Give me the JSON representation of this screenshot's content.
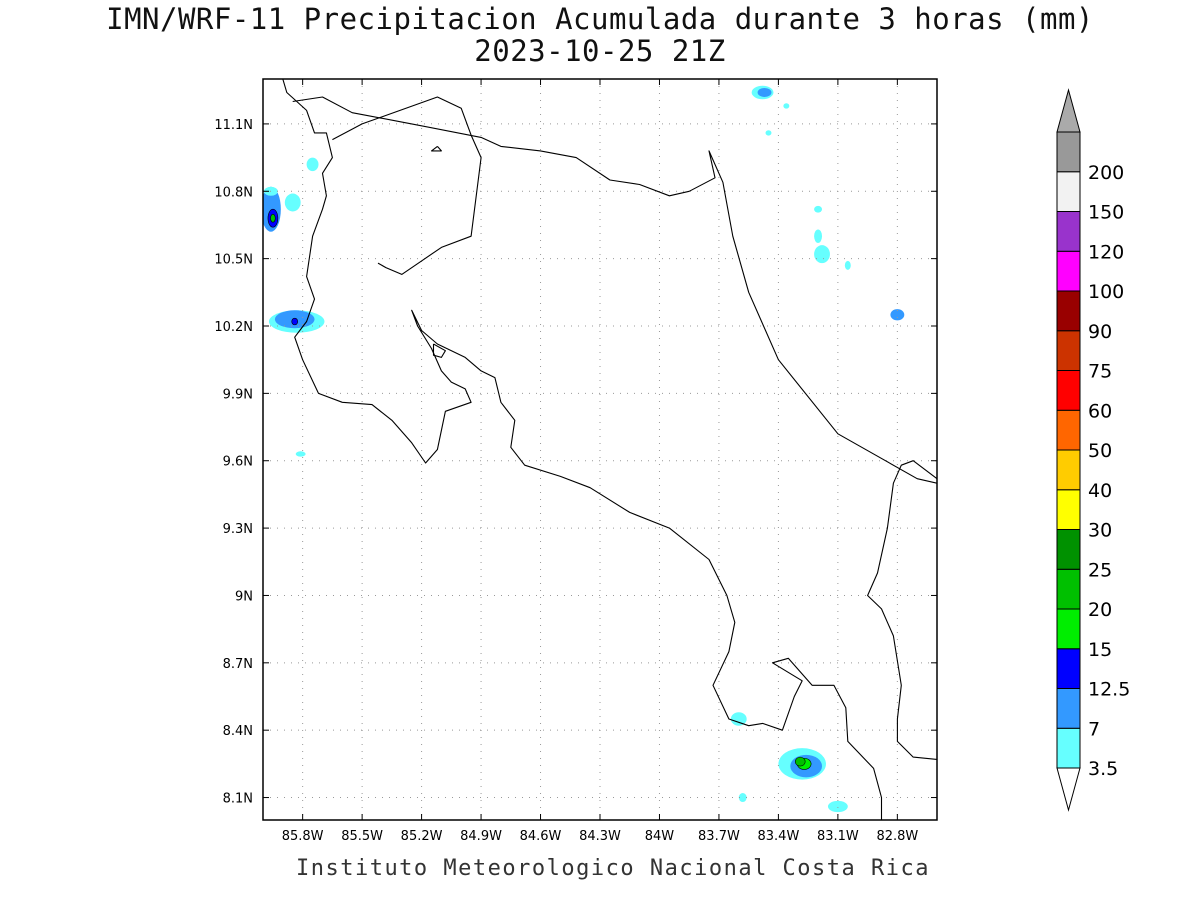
{
  "title": {
    "line1": "IMN/WRF-11 Precipitacion Acumulada durante 3 horas (mm)",
    "line2": "2023-10-25 21Z"
  },
  "footer": "Instituto Meteorologico Nacional Costa Rica",
  "map": {
    "lon_range": [
      -86.0,
      -82.6
    ],
    "lat_range": [
      8.0,
      11.3
    ],
    "grid": true,
    "lon_ticks": [
      {
        "value": -85.8,
        "label": "85.8W"
      },
      {
        "value": -85.5,
        "label": "85.5W"
      },
      {
        "value": -85.2,
        "label": "85.2W"
      },
      {
        "value": -84.9,
        "label": "84.9W"
      },
      {
        "value": -84.6,
        "label": "84.6W"
      },
      {
        "value": -84.3,
        "label": "84.3W"
      },
      {
        "value": -84.0,
        "label": "84W"
      },
      {
        "value": -83.7,
        "label": "83.7W"
      },
      {
        "value": -83.4,
        "label": "83.4W"
      },
      {
        "value": -83.1,
        "label": "83.1W"
      },
      {
        "value": -82.8,
        "label": "82.8W"
      }
    ],
    "lat_ticks": [
      {
        "value": 11.1,
        "label": "11.1N"
      },
      {
        "value": 10.8,
        "label": "10.8N"
      },
      {
        "value": 10.5,
        "label": "10.5N"
      },
      {
        "value": 10.2,
        "label": "10.2N"
      },
      {
        "value": 9.9,
        "label": "9.9N"
      },
      {
        "value": 9.6,
        "label": "9.6N"
      },
      {
        "value": 9.3,
        "label": "9.3N"
      },
      {
        "value": 9.0,
        "label": "9N"
      },
      {
        "value": 8.7,
        "label": "8.7N"
      },
      {
        "value": 8.4,
        "label": "8.4N"
      },
      {
        "value": 8.1,
        "label": "8.1N"
      }
    ],
    "coastlines": [
      [
        [
          -85.9,
          11.3
        ],
        [
          -85.88,
          11.24
        ],
        [
          -85.78,
          11.16
        ],
        [
          -85.74,
          11.06
        ],
        [
          -85.68,
          11.06
        ],
        [
          -85.65,
          10.95
        ],
        [
          -85.7,
          10.88
        ],
        [
          -85.68,
          10.78
        ],
        [
          -85.7,
          10.72
        ],
        [
          -85.75,
          10.6
        ],
        [
          -85.78,
          10.42
        ],
        [
          -85.74,
          10.32
        ],
        [
          -85.78,
          10.22
        ],
        [
          -85.84,
          10.15
        ],
        [
          -85.8,
          10.05
        ],
        [
          -85.72,
          9.9
        ],
        [
          -85.6,
          9.86
        ],
        [
          -85.45,
          9.85
        ],
        [
          -85.35,
          9.78
        ],
        [
          -85.25,
          9.68
        ],
        [
          -85.18,
          9.59
        ],
        [
          -85.12,
          9.65
        ],
        [
          -85.08,
          9.82
        ],
        [
          -84.95,
          9.86
        ],
        [
          -84.98,
          9.92
        ],
        [
          -85.05,
          9.95
        ],
        [
          -85.1,
          10.0
        ],
        [
          -85.15,
          10.1
        ],
        [
          -85.22,
          10.2
        ],
        [
          -85.25,
          10.27
        ],
        [
          -85.2,
          10.18
        ],
        [
          -85.12,
          10.12
        ],
        [
          -84.98,
          10.06
        ],
        [
          -84.9,
          10.0
        ],
        [
          -84.83,
          9.97
        ],
        [
          -84.8,
          9.86
        ],
        [
          -84.73,
          9.78
        ],
        [
          -84.75,
          9.66
        ],
        [
          -84.68,
          9.58
        ],
        [
          -84.5,
          9.53
        ],
        [
          -84.35,
          9.48
        ],
        [
          -84.15,
          9.37
        ],
        [
          -83.95,
          9.3
        ],
        [
          -83.75,
          9.16
        ],
        [
          -83.66,
          9.0
        ],
        [
          -83.62,
          8.88
        ],
        [
          -83.65,
          8.75
        ],
        [
          -83.73,
          8.6
        ],
        [
          -83.65,
          8.45
        ],
        [
          -83.55,
          8.42
        ],
        [
          -83.48,
          8.43
        ],
        [
          -83.38,
          8.4
        ],
        [
          -83.32,
          8.55
        ],
        [
          -83.28,
          8.62
        ],
        [
          -83.43,
          8.7
        ],
        [
          -83.35,
          8.72
        ],
        [
          -83.23,
          8.6
        ],
        [
          -83.12,
          8.6
        ],
        [
          -83.06,
          8.5
        ],
        [
          -83.05,
          8.35
        ],
        [
          -82.92,
          8.23
        ],
        [
          -82.88,
          8.1
        ],
        [
          -82.88,
          8.0
        ]
      ],
      [
        [
          -85.42,
          10.48
        ],
        [
          -85.38,
          10.46
        ],
        [
          -85.3,
          10.43
        ],
        [
          -85.2,
          10.49
        ],
        [
          -85.1,
          10.55
        ],
        [
          -84.95,
          10.6
        ],
        [
          -84.9,
          10.95
        ],
        [
          -84.95,
          11.05
        ],
        [
          -85.0,
          11.17
        ],
        [
          -85.12,
          11.22
        ],
        [
          -85.5,
          11.1
        ],
        [
          -85.65,
          11.03
        ]
      ],
      [
        [
          -85.85,
          11.2
        ],
        [
          -85.7,
          11.22
        ],
        [
          -85.55,
          11.15
        ],
        [
          -85.25,
          11.1
        ],
        [
          -84.9,
          11.04
        ],
        [
          -84.8,
          11.0
        ],
        [
          -84.6,
          10.98
        ],
        [
          -84.42,
          10.95
        ],
        [
          -84.25,
          10.85
        ],
        [
          -84.1,
          10.83
        ],
        [
          -83.95,
          10.78
        ],
        [
          -83.85,
          10.8
        ],
        [
          -83.72,
          10.86
        ],
        [
          -83.75,
          10.98
        ],
        [
          -83.68,
          10.84
        ],
        [
          -83.63,
          10.6
        ],
        [
          -83.55,
          10.35
        ],
        [
          -83.4,
          10.05
        ],
        [
          -83.1,
          9.72
        ],
        [
          -82.9,
          9.62
        ],
        [
          -82.7,
          9.52
        ],
        [
          -82.6,
          9.5
        ]
      ],
      [
        [
          -82.6,
          9.52
        ],
        [
          -82.72,
          9.6
        ],
        [
          -82.78,
          9.58
        ],
        [
          -82.82,
          9.5
        ],
        [
          -82.85,
          9.3
        ],
        [
          -82.9,
          9.1
        ],
        [
          -82.95,
          9.0
        ],
        [
          -82.88,
          8.94
        ],
        [
          -82.82,
          8.82
        ],
        [
          -82.78,
          8.6
        ],
        [
          -82.8,
          8.45
        ],
        [
          -82.8,
          8.35
        ],
        [
          -82.72,
          8.28
        ],
        [
          -82.6,
          8.27
        ]
      ],
      [
        [
          -85.14,
          10.12
        ],
        [
          -85.08,
          10.09
        ],
        [
          -85.1,
          10.06
        ],
        [
          -85.14,
          10.07
        ],
        [
          -85.14,
          10.12
        ]
      ],
      [
        [
          -85.12,
          11.0
        ],
        [
          -85.1,
          10.98
        ],
        [
          -85.15,
          10.98
        ],
        [
          -85.12,
          11.0
        ]
      ]
    ]
  },
  "precip_blobs": [
    {
      "lon": -85.96,
      "lat": 10.72,
      "rx": 0.05,
      "ry": 0.1,
      "level": 7
    },
    {
      "lon": -85.95,
      "lat": 10.68,
      "rx": 0.025,
      "ry": 0.04,
      "level": 12.5
    },
    {
      "lon": -85.95,
      "lat": 10.68,
      "rx": 0.012,
      "ry": 0.018,
      "level": 20
    },
    {
      "lon": -85.85,
      "lat": 10.75,
      "rx": 0.04,
      "ry": 0.04,
      "level": 3.5
    },
    {
      "lon": -85.83,
      "lat": 10.22,
      "rx": 0.14,
      "ry": 0.05,
      "level": 3.5
    },
    {
      "lon": -85.84,
      "lat": 10.23,
      "rx": 0.1,
      "ry": 0.04,
      "level": 7
    },
    {
      "lon": -85.84,
      "lat": 10.22,
      "rx": 0.015,
      "ry": 0.015,
      "level": 12.5
    },
    {
      "lon": -85.96,
      "lat": 10.8,
      "rx": 0.035,
      "ry": 0.02,
      "level": 3.5
    },
    {
      "lon": -85.81,
      "lat": 9.63,
      "rx": 0.025,
      "ry": 0.012,
      "level": 3.5
    },
    {
      "lon": -85.75,
      "lat": 10.92,
      "rx": 0.03,
      "ry": 0.03,
      "level": 3.5
    },
    {
      "lon": -83.48,
      "lat": 11.24,
      "rx": 0.055,
      "ry": 0.03,
      "level": 3.5
    },
    {
      "lon": -83.47,
      "lat": 11.24,
      "rx": 0.035,
      "ry": 0.02,
      "level": 7
    },
    {
      "lon": -83.36,
      "lat": 11.18,
      "rx": 0.015,
      "ry": 0.012,
      "level": 3.5
    },
    {
      "lon": -83.45,
      "lat": 11.06,
      "rx": 0.015,
      "ry": 0.012,
      "level": 3.5
    },
    {
      "lon": -83.2,
      "lat": 10.6,
      "rx": 0.02,
      "ry": 0.03,
      "level": 3.5
    },
    {
      "lon": -83.18,
      "lat": 10.52,
      "rx": 0.04,
      "ry": 0.04,
      "level": 3.5
    },
    {
      "lon": -83.2,
      "lat": 10.72,
      "rx": 0.02,
      "ry": 0.015,
      "level": 3.5
    },
    {
      "lon": -83.05,
      "lat": 10.47,
      "rx": 0.015,
      "ry": 0.02,
      "level": 3.5
    },
    {
      "lon": -82.8,
      "lat": 10.25,
      "rx": 0.035,
      "ry": 0.025,
      "level": 7
    },
    {
      "lon": -83.6,
      "lat": 8.45,
      "rx": 0.04,
      "ry": 0.03,
      "level": 3.5
    },
    {
      "lon": -83.28,
      "lat": 8.25,
      "rx": 0.12,
      "ry": 0.07,
      "level": 3.5
    },
    {
      "lon": -83.26,
      "lat": 8.24,
      "rx": 0.08,
      "ry": 0.05,
      "level": 7
    },
    {
      "lon": -83.27,
      "lat": 8.25,
      "rx": 0.035,
      "ry": 0.025,
      "level": 15
    },
    {
      "lon": -83.29,
      "lat": 8.26,
      "rx": 0.025,
      "ry": 0.02,
      "level": 20
    },
    {
      "lon": -83.1,
      "lat": 8.06,
      "rx": 0.05,
      "ry": 0.025,
      "level": 3.5
    },
    {
      "lon": -83.58,
      "lat": 8.1,
      "rx": 0.02,
      "ry": 0.02,
      "level": 3.5
    }
  ],
  "colorbar": {
    "levels": [
      "3.5",
      "7",
      "12.5",
      "15",
      "20",
      "25",
      "30",
      "40",
      "50",
      "60",
      "75",
      "90",
      "100",
      "120",
      "150",
      "200"
    ],
    "colors": [
      "#66ffff",
      "#3399ff",
      "#0000ff",
      "#00ee00",
      "#00c000",
      "#009100",
      "#ffff00",
      "#ffcc00",
      "#ff6600",
      "#ff0000",
      "#cc3300",
      "#990000",
      "#ff00ff",
      "#9933cc",
      "#f2f2f2",
      "#999999"
    ],
    "bottom_triangle": "#ffffff",
    "top_triangle": "#aaaaaa"
  }
}
